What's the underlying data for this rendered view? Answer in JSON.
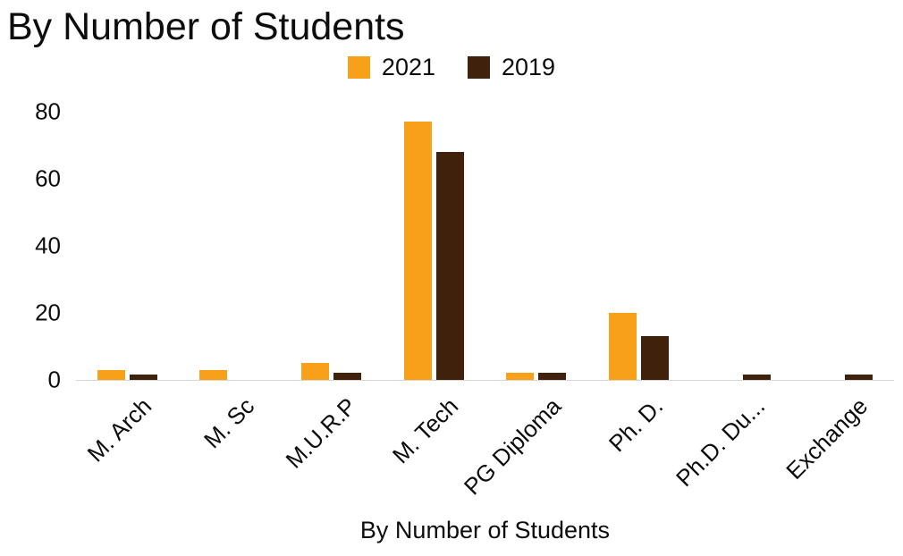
{
  "chart_data": {
    "type": "bar",
    "title": "By Number of Students",
    "axis_title": "By Number of Students",
    "categories": [
      "M. Arch",
      "M. Sc",
      "M.U.R.P",
      "M. Tech",
      "PG Diploma",
      "Ph. D.",
      "Ph.D. Du...",
      "Exchange"
    ],
    "series": [
      {
        "name": "2021",
        "color": "#F9A01B",
        "values": [
          3,
          3,
          5,
          77,
          2,
          20,
          0,
          0
        ]
      },
      {
        "name": "2019",
        "color": "#40210B",
        "values": [
          1.5,
          0,
          2,
          68,
          2,
          13,
          1.5,
          1.5
        ]
      }
    ],
    "ylim": [
      0,
      80
    ],
    "yticks": [
      0,
      20,
      40,
      60,
      80
    ],
    "grid": false,
    "legend_position": "top",
    "axis_line_color": "#d6d6d6",
    "text_color": "#0d0d0d"
  }
}
